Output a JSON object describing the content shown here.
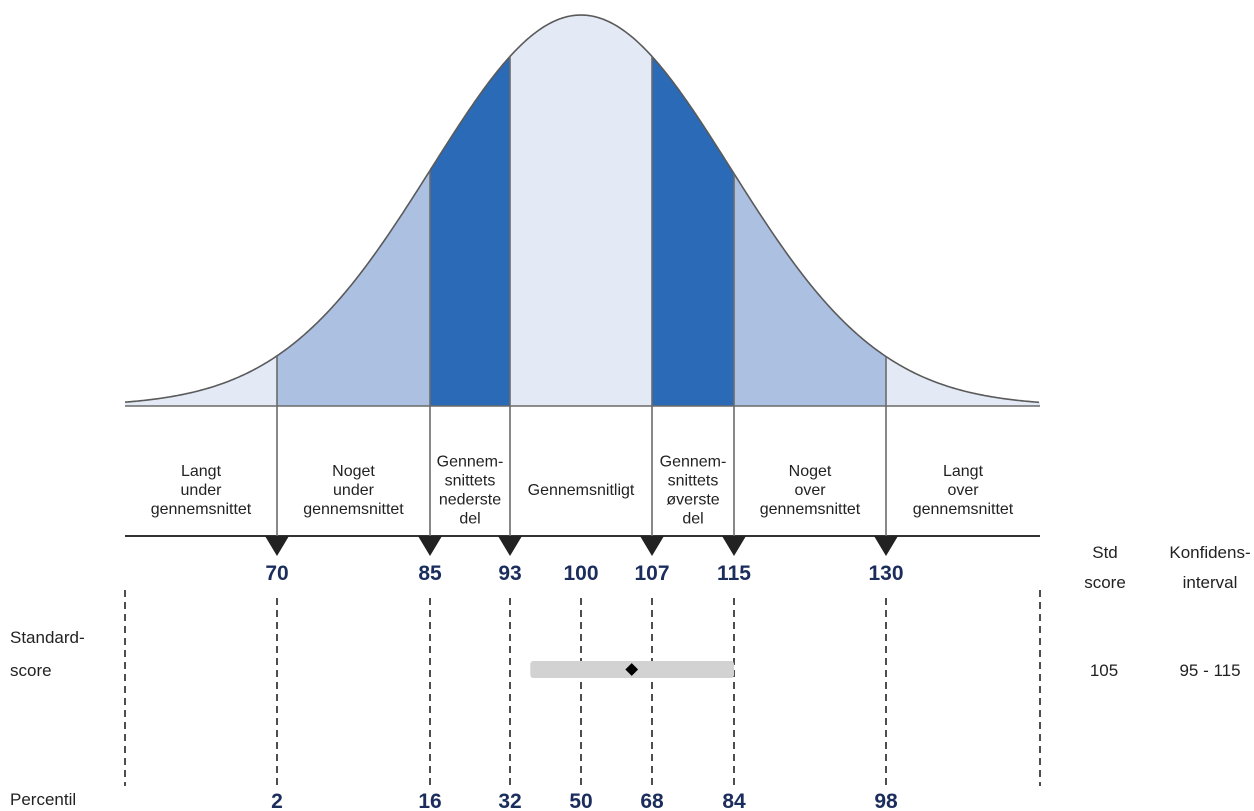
{
  "chart_data": {
    "type": "bell-curve",
    "categories": [
      [
        "Langt",
        "under",
        "gennemsnittet"
      ],
      [
        "Noget",
        "under",
        "gennemsnittet"
      ],
      [
        "Gennem-",
        "snittets",
        "nederste",
        "del"
      ],
      [
        "Gennemsnitligt"
      ],
      [
        "Gennem-",
        "snittets",
        "øverste",
        "del"
      ],
      [
        "Noget",
        "over",
        "gennemsnittet"
      ],
      [
        "Langt",
        "over",
        "gennemsnittet"
      ]
    ],
    "region_shades": [
      "light",
      "medium",
      "dark",
      "light",
      "dark",
      "medium",
      "light"
    ],
    "std_score_ticks": [
      70,
      85,
      93,
      100,
      107,
      115,
      130
    ],
    "percentile_ticks": [
      2,
      16,
      32,
      50,
      68,
      84,
      98
    ],
    "row_labels": {
      "standard_score": [
        "Standard-",
        "score"
      ],
      "percentile": "Percentil"
    },
    "result_headers": {
      "std_score": [
        "Std",
        "score"
      ],
      "confidence_interval": [
        "Konfidens-",
        "interval"
      ]
    },
    "result": {
      "std_score": 105,
      "ci_low": 95,
      "ci_high": 115,
      "std_score_text": "105",
      "ci_text": "95  -  115"
    },
    "colors": {
      "light": "#e3e9f5",
      "medium": "#acc0e2",
      "dark": "#2a6ab6",
      "curve": "#5a5a5a",
      "numbers": "#1b2d5c",
      "ci_bar": "#d2d2d2",
      "marker": "#000000"
    }
  }
}
